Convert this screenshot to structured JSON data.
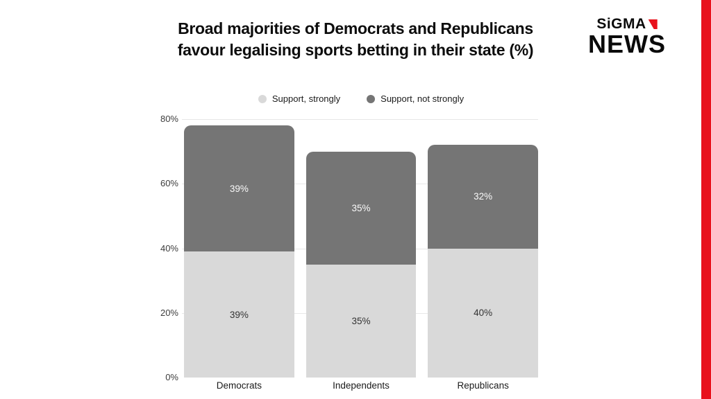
{
  "brand": {
    "top": "SiGMA",
    "bottom": "NEWS"
  },
  "colors": {
    "accent_red": "#e8111c",
    "background": "#ffffff",
    "gridline": "#e7e7e7"
  },
  "chart_data": {
    "type": "bar",
    "stacked": true,
    "title": "Broad majorities of Democrats and Republicans favour legalising sports betting in their state (%)",
    "title_lines": [
      "Broad majorities of Democrats and Republicans",
      "favour legalising sports betting in their state (%)"
    ],
    "categories": [
      "Democrats",
      "Independents",
      "Republicans"
    ],
    "series": [
      {
        "name": "Support, strongly",
        "color": "#d9d9d9",
        "label_color": "#333333",
        "values": [
          39,
          35,
          40
        ]
      },
      {
        "name": "Support, not strongly",
        "color": "#757575",
        "label_color": "#fafafa",
        "values": [
          39,
          35,
          32
        ]
      }
    ],
    "totals": [
      78,
      70,
      72
    ],
    "ylim": [
      0,
      80
    ],
    "yticks": [
      0,
      20,
      40,
      60,
      80
    ],
    "ytick_suffix": "%",
    "value_suffix": "%",
    "grid": true,
    "legend_position": "top-center"
  }
}
